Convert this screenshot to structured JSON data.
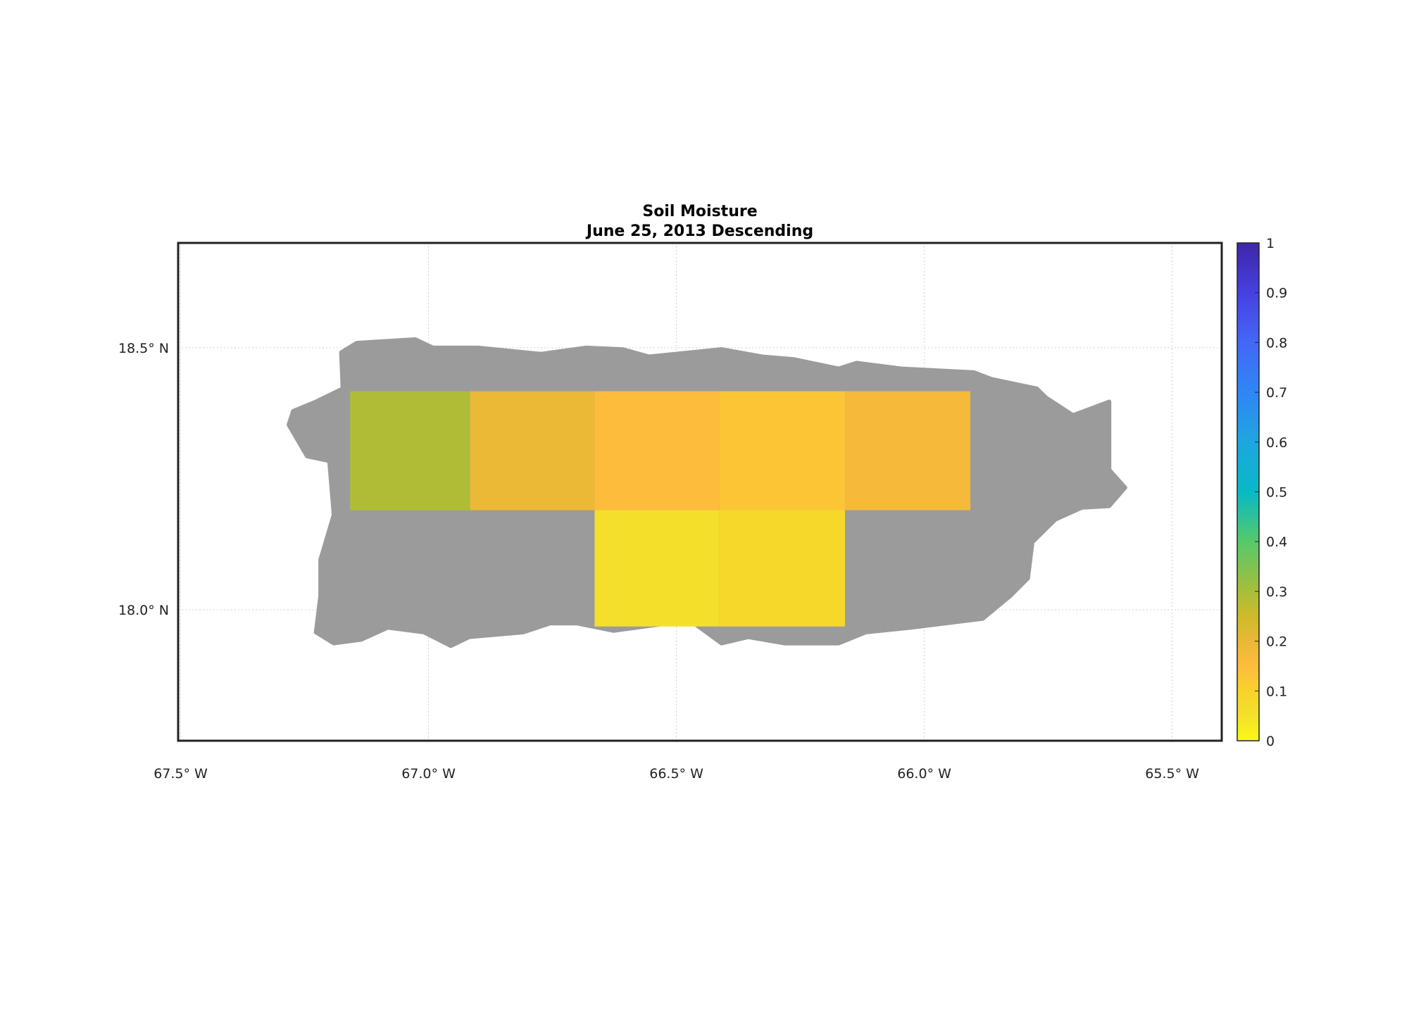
{
  "chart_data": {
    "type": "heatmap",
    "title": "Soil Moisture",
    "subtitle": "June 25, 2013 Descending",
    "xlabel": "",
    "ylabel": "",
    "xlim": [
      -67.505,
      -65.4
    ],
    "ylim": [
      17.75,
      18.7
    ],
    "grid": true,
    "x_ticks": [
      {
        "value": -67.5,
        "label": "67.5° W"
      },
      {
        "value": -67.0,
        "label": "67.0° W"
      },
      {
        "value": -66.5,
        "label": "66.5° W"
      },
      {
        "value": -66.0,
        "label": "66.0° W"
      },
      {
        "value": -65.5,
        "label": "65.5° W"
      }
    ],
    "y_ticks": [
      {
        "value": 18.5,
        "label": "18.5° N"
      },
      {
        "value": 18.0,
        "label": "18.0° N"
      }
    ],
    "land_color": "#9b9b9b",
    "land_outline": [
      [
        -67.176,
        18.491
      ],
      [
        -67.145,
        18.509
      ],
      [
        -67.027,
        18.516
      ],
      [
        -66.991,
        18.5
      ],
      [
        -66.9,
        18.5
      ],
      [
        -66.773,
        18.488
      ],
      [
        -66.682,
        18.5
      ],
      [
        -66.609,
        18.497
      ],
      [
        -66.555,
        18.483
      ],
      [
        -66.409,
        18.497
      ],
      [
        -66.327,
        18.483
      ],
      [
        -66.264,
        18.478
      ],
      [
        -66.173,
        18.46
      ],
      [
        -66.136,
        18.471
      ],
      [
        -66.045,
        18.46
      ],
      [
        -65.9,
        18.453
      ],
      [
        -65.864,
        18.44
      ],
      [
        -65.773,
        18.422
      ],
      [
        -65.755,
        18.405
      ],
      [
        -65.7,
        18.371
      ],
      [
        -65.627,
        18.397
      ],
      [
        -65.627,
        18.267
      ],
      [
        -65.595,
        18.233
      ],
      [
        -65.627,
        18.198
      ],
      [
        -65.682,
        18.195
      ],
      [
        -65.736,
        18.172
      ],
      [
        -65.782,
        18.129
      ],
      [
        -65.791,
        18.06
      ],
      [
        -65.827,
        18.026
      ],
      [
        -65.882,
        17.983
      ],
      [
        -66.027,
        17.966
      ],
      [
        -66.118,
        17.957
      ],
      [
        -66.173,
        17.936
      ],
      [
        -66.282,
        17.936
      ],
      [
        -66.355,
        17.948
      ],
      [
        -66.409,
        17.936
      ],
      [
        -66.464,
        17.974
      ],
      [
        -66.518,
        17.974
      ],
      [
        -66.627,
        17.96
      ],
      [
        -66.7,
        17.974
      ],
      [
        -66.755,
        17.974
      ],
      [
        -66.809,
        17.957
      ],
      [
        -66.918,
        17.948
      ],
      [
        -66.955,
        17.931
      ],
      [
        -67.009,
        17.957
      ],
      [
        -67.082,
        17.966
      ],
      [
        -67.136,
        17.943
      ],
      [
        -67.191,
        17.936
      ],
      [
        -67.227,
        17.957
      ],
      [
        -67.218,
        18.026
      ],
      [
        -67.218,
        18.095
      ],
      [
        -67.191,
        18.181
      ],
      [
        -67.2,
        18.284
      ],
      [
        -67.245,
        18.293
      ],
      [
        -67.282,
        18.353
      ],
      [
        -67.273,
        18.379
      ],
      [
        -67.227,
        18.397
      ],
      [
        -67.173,
        18.422
      ]
    ],
    "cells": [
      {
        "lon": [
          -67.158,
          -66.916
        ],
        "lat": [
          18.19,
          18.417
        ],
        "value": 0.29
      },
      {
        "lon": [
          -66.916,
          -66.665
        ],
        "lat": [
          18.19,
          18.417
        ],
        "value": 0.19
      },
      {
        "lon": [
          -66.665,
          -66.413
        ],
        "lat": [
          18.19,
          18.417
        ],
        "value": 0.15
      },
      {
        "lon": [
          -66.413,
          -66.16
        ],
        "lat": [
          18.19,
          18.417
        ],
        "value": 0.13
      },
      {
        "lon": [
          -66.16,
          -65.907
        ],
        "lat": [
          18.19,
          18.417
        ],
        "value": 0.17
      },
      {
        "lon": [
          -66.665,
          -66.413
        ],
        "lat": [
          17.968,
          18.19
        ],
        "value": 0.05
      },
      {
        "lon": [
          -66.413,
          -66.16
        ],
        "lat": [
          17.968,
          18.19
        ],
        "value": 0.08
      }
    ],
    "colorbar": {
      "range": [
        0,
        1
      ],
      "ticks": [
        "0",
        "0.1",
        "0.2",
        "0.3",
        "0.4",
        "0.5",
        "0.6",
        "0.7",
        "0.8",
        "0.9",
        "1"
      ],
      "colormap": [
        [
          0.0,
          "#f9fa14"
        ],
        [
          0.05,
          "#f4e02a"
        ],
        [
          0.1,
          "#f8d22c"
        ],
        [
          0.15,
          "#fdbc3c"
        ],
        [
          0.2,
          "#e8b836"
        ],
        [
          0.25,
          "#cdbb2a"
        ],
        [
          0.3,
          "#a8be39"
        ],
        [
          0.4,
          "#56c96a"
        ],
        [
          0.5,
          "#08b9c6"
        ],
        [
          0.6,
          "#1ea6e0"
        ],
        [
          0.7,
          "#2f86f5"
        ],
        [
          0.8,
          "#4467f7"
        ],
        [
          0.9,
          "#4640e0"
        ],
        [
          1.0,
          "#3e26a8"
        ]
      ]
    }
  }
}
